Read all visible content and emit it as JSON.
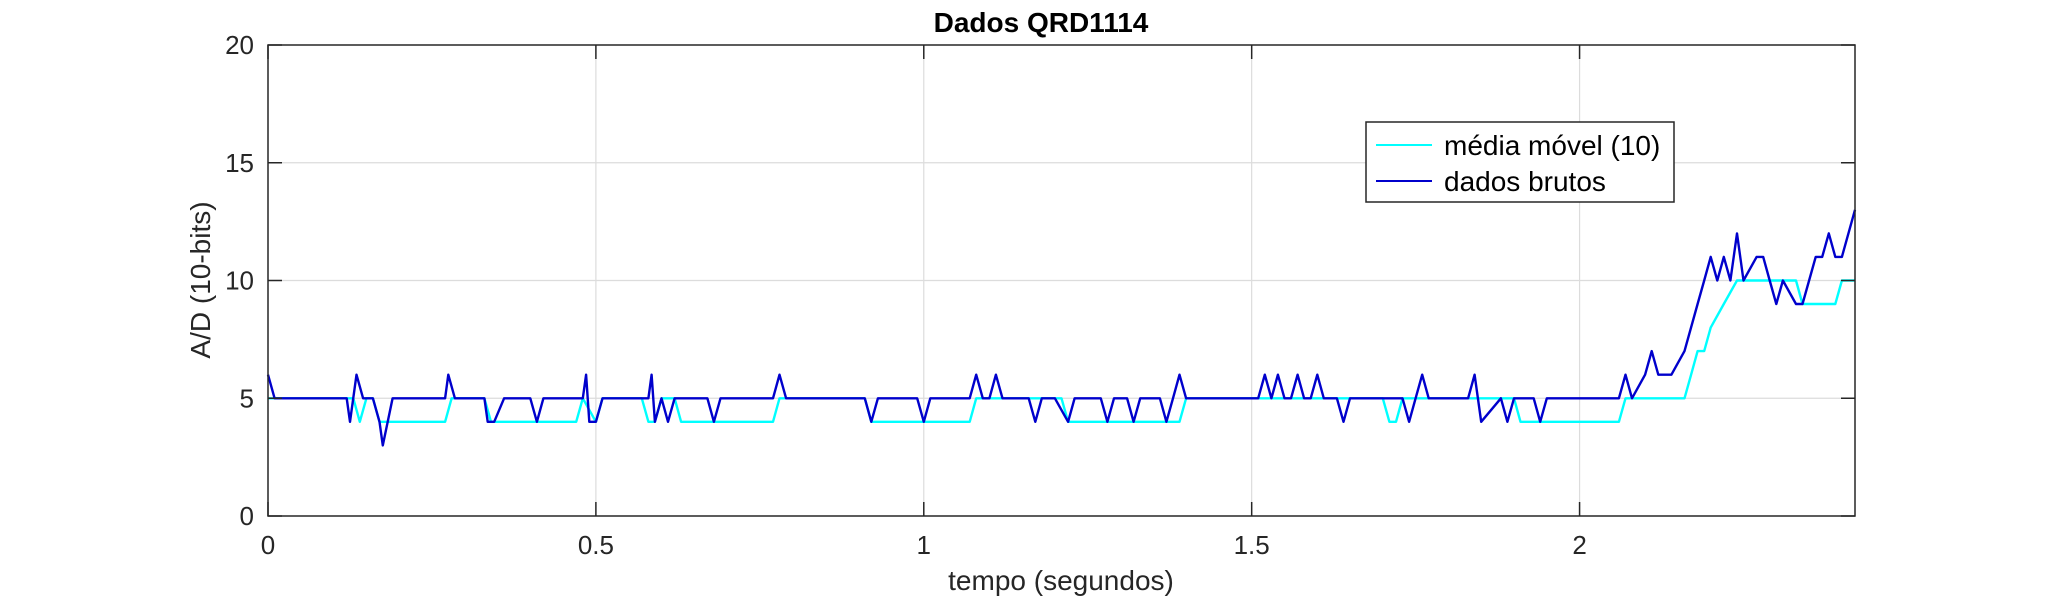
{
  "chart_data": {
    "type": "line",
    "title": "Dados QRD1114",
    "xlabel": "tempo (segundos)",
    "ylabel": "A/D (10-bits)",
    "xlim": [
      0,
      2.42
    ],
    "ylim": [
      0,
      20
    ],
    "xticks": [
      0,
      0.5,
      1,
      1.5,
      2
    ],
    "xtick_labels": [
      "0",
      "0.5",
      "1",
      "1.5",
      "2"
    ],
    "yticks": [
      0,
      5,
      10,
      15,
      20
    ],
    "ytick_labels": [
      "0",
      "5",
      "10",
      "15",
      "20"
    ],
    "grid": true,
    "legend_position": "top-right",
    "series": [
      {
        "name": "média móvel (10)",
        "color": "#00ffff",
        "x": [
          0,
          0.13,
          0.14,
          0.15,
          0.16,
          0.17,
          0.18,
          0.19,
          0.2,
          0.27,
          0.28,
          0.33,
          0.34,
          0.35,
          0.36,
          0.47,
          0.48,
          0.5,
          0.51,
          0.57,
          0.58,
          0.59,
          0.6,
          0.62,
          0.63,
          0.77,
          0.78,
          0.91,
          0.92,
          1.07,
          1.08,
          1.21,
          1.22,
          1.39,
          1.4,
          1.7,
          1.71,
          1.72,
          1.73,
          1.9,
          1.91,
          2.06,
          2.07,
          2.16,
          2.17,
          2.18,
          2.19,
          2.2,
          2.22,
          2.24,
          2.26,
          2.33,
          2.34,
          2.39,
          2.4,
          2.42
        ],
        "values": [
          5,
          5,
          4,
          5,
          5,
          4,
          4,
          4,
          4,
          4,
          5,
          5,
          4,
          4,
          4,
          4,
          5,
          4,
          5,
          5,
          4,
          4,
          5,
          5,
          4,
          4,
          5,
          5,
          4,
          4,
          5,
          5,
          4,
          4,
          5,
          5,
          4,
          4,
          5,
          5,
          4,
          4,
          5,
          5,
          6,
          7,
          7,
          8,
          9,
          10,
          10,
          10,
          9,
          9,
          10,
          10
        ]
      },
      {
        "name": "dados brutos",
        "color": "#0000cc",
        "x": [
          0,
          0.01,
          0.12,
          0.125,
          0.135,
          0.145,
          0.16,
          0.17,
          0.175,
          0.19,
          0.27,
          0.275,
          0.285,
          0.33,
          0.335,
          0.345,
          0.36,
          0.4,
          0.41,
          0.42,
          0.48,
          0.485,
          0.49,
          0.5,
          0.51,
          0.58,
          0.585,
          0.59,
          0.6,
          0.61,
          0.62,
          0.67,
          0.68,
          0.69,
          0.77,
          0.78,
          0.79,
          0.91,
          0.92,
          0.93,
          0.99,
          1.0,
          1.01,
          1.07,
          1.08,
          1.09,
          1.1,
          1.11,
          1.12,
          1.16,
          1.17,
          1.18,
          1.2,
          1.22,
          1.23,
          1.27,
          1.28,
          1.29,
          1.31,
          1.32,
          1.33,
          1.36,
          1.37,
          1.38,
          1.39,
          1.4,
          1.51,
          1.52,
          1.53,
          1.54,
          1.55,
          1.56,
          1.57,
          1.58,
          1.59,
          1.6,
          1.61,
          1.63,
          1.64,
          1.65,
          1.73,
          1.74,
          1.75,
          1.76,
          1.77,
          1.83,
          1.84,
          1.85,
          1.88,
          1.89,
          1.9,
          1.93,
          1.94,
          1.95,
          2.06,
          2.07,
          2.08,
          2.1,
          2.11,
          2.12,
          2.14,
          2.16,
          2.18,
          2.19,
          2.2,
          2.21,
          2.22,
          2.23,
          2.24,
          2.25,
          2.27,
          2.28,
          2.29,
          2.3,
          2.31,
          2.33,
          2.34,
          2.35,
          2.36,
          2.37,
          2.38,
          2.39,
          2.4,
          2.42
        ],
        "values": [
          6,
          5,
          5,
          4,
          6,
          5,
          5,
          4,
          3,
          5,
          5,
          6,
          5,
          5,
          4,
          4,
          5,
          5,
          4,
          5,
          5,
          6,
          4,
          4,
          5,
          5,
          6,
          4,
          5,
          4,
          5,
          5,
          4,
          5,
          5,
          6,
          5,
          5,
          4,
          5,
          5,
          4,
          5,
          5,
          6,
          5,
          5,
          6,
          5,
          5,
          4,
          5,
          5,
          4,
          5,
          5,
          4,
          5,
          5,
          4,
          5,
          5,
          4,
          5,
          6,
          5,
          5,
          6,
          5,
          6,
          5,
          5,
          6,
          5,
          5,
          6,
          5,
          5,
          4,
          5,
          5,
          4,
          5,
          6,
          5,
          5,
          6,
          4,
          5,
          4,
          5,
          5,
          4,
          5,
          5,
          6,
          5,
          6,
          7,
          6,
          6,
          7,
          9,
          10,
          11,
          10,
          11,
          10,
          12,
          10,
          11,
          11,
          10,
          9,
          10,
          9,
          9,
          10,
          11,
          11,
          12,
          11,
          11,
          13
        ]
      }
    ]
  }
}
